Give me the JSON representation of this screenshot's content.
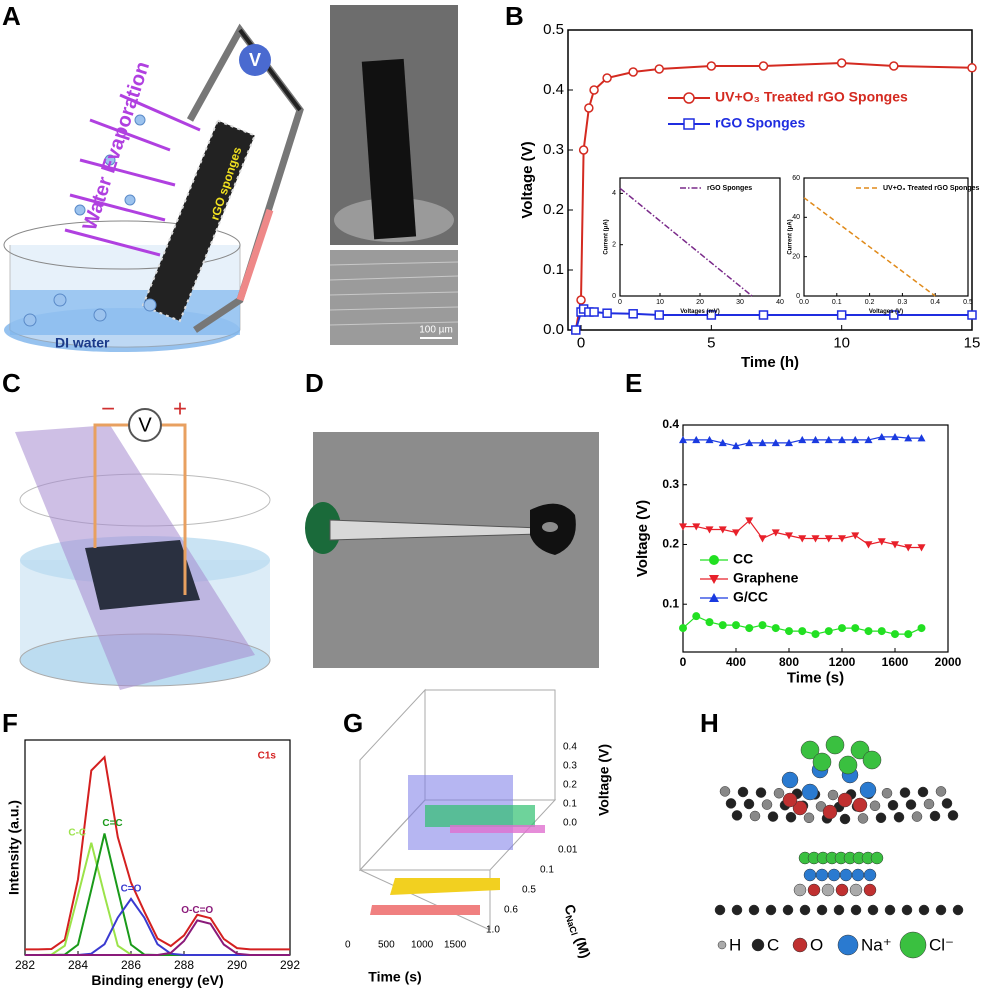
{
  "figure": {
    "panel_labels": [
      "A",
      "B",
      "C",
      "D",
      "E",
      "F",
      "G",
      "H"
    ],
    "panel_a": {
      "arrow_label": "Water Evaporation",
      "meter": "V",
      "sponge_label": "rGO sponges",
      "water_label": "DI water",
      "scale_bar": "100 µm"
    },
    "panel_c": {
      "meter": "V",
      "minus": "−",
      "plus": "+"
    },
    "panel_g": {
      "z_label": "Voltage (V)",
      "z_ticks": [
        "0.4",
        "0.3",
        "0.2",
        "0.1",
        "0.0"
      ],
      "y_label": "C",
      "y_label_sub": "NaCl",
      "y_label_unit": "(M)",
      "y_ticks": [
        "0.01",
        "0.1",
        "0.5",
        "0.6",
        "1.0"
      ],
      "x_label": "Time (s)",
      "x_ticks": [
        "0",
        "500",
        "1000",
        "1500"
      ]
    },
    "panel_h": {
      "legend": [
        "H",
        "C",
        "O",
        "Na⁺",
        "Cl⁻"
      ]
    }
  },
  "chart_data": [
    {
      "type": "line",
      "x_label": "Time (h)",
      "y_label": "Voltage (V)",
      "xlim": [
        -0.5,
        15
      ],
      "ylim": [
        0,
        0.5
      ],
      "xticks": [
        0,
        5,
        10,
        15
      ],
      "yticks": [
        {
          "value": 0,
          "label": "0.0"
        },
        0.1,
        0.2,
        0.3,
        0.4,
        0.5
      ],
      "x": [
        -0.2,
        0,
        0.1,
        0.3,
        0.5,
        1,
        2,
        3,
        5,
        7,
        10,
        12,
        15
      ],
      "series": [
        {
          "name": "UV+O₃ Treated rGO Sponges",
          "color": "#d42a20",
          "marker": "circle-open",
          "values": [
            0,
            0.05,
            0.3,
            0.37,
            0.4,
            0.42,
            0.43,
            0.435,
            0.44,
            0.44,
            0.445,
            0.44,
            0.437
          ]
        },
        {
          "name": "rGO Sponges",
          "color": "#1f2de0",
          "marker": "square-open",
          "values": [
            0,
            0.03,
            0.035,
            0.03,
            0.03,
            0.028,
            0.027,
            0.025,
            0.025,
            0.025,
            0.025,
            0.025,
            0.025
          ]
        }
      ]
    },
    {
      "type": "line",
      "x_label": "Voltages (mV)",
      "y_label": "Current (μA)",
      "xlim": [
        0,
        40
      ],
      "ylim": [
        0,
        4.6
      ],
      "xticks": [
        0,
        10,
        20,
        30,
        40
      ],
      "yticks": [
        0,
        2,
        4
      ],
      "x": [
        0,
        33
      ],
      "series": [
        {
          "name": "rGO Sponges",
          "color": "#7a2a8a",
          "linestyle": "dashdot",
          "values": [
            4.2,
            0
          ]
        }
      ]
    },
    {
      "type": "line",
      "x_label": "Voltages (V)",
      "y_label": "Current (μA)",
      "xlim": [
        0,
        0.5
      ],
      "ylim": [
        0,
        60
      ],
      "xticks": [
        {
          "value": 0,
          "label": "0.0"
        },
        0.1,
        0.2,
        0.3,
        0.4,
        0.5
      ],
      "yticks": [
        0,
        20,
        40,
        60
      ],
      "x": [
        0,
        0.4
      ],
      "series": [
        {
          "name": "UV+O₃ Treated rGO Sponges",
          "color": "#e08a1a",
          "linestyle": "dashed",
          "values": [
            50,
            0
          ]
        }
      ]
    },
    {
      "type": "line",
      "x_label": "Time (s)",
      "y_label": "Voltage (V)",
      "xlim": [
        0,
        2000
      ],
      "ylim": [
        0.02,
        0.4
      ],
      "xticks": [
        0,
        400,
        800,
        1200,
        1600,
        2000
      ],
      "yticks": [
        0.1,
        0.2,
        0.3,
        0.4
      ],
      "x": [
        0,
        100,
        200,
        300,
        400,
        500,
        600,
        700,
        800,
        900,
        1000,
        1100,
        1200,
        1300,
        1400,
        1500,
        1600,
        1700,
        1800
      ],
      "series": [
        {
          "name": "CC",
          "color": "#22e022",
          "marker": "circle-filled",
          "values": [
            0.06,
            0.08,
            0.07,
            0.065,
            0.065,
            0.06,
            0.065,
            0.06,
            0.055,
            0.055,
            0.05,
            0.055,
            0.06,
            0.06,
            0.055,
            0.055,
            0.05,
            0.05,
            0.06
          ]
        },
        {
          "name": "Graphene",
          "color": "#e8202a",
          "marker": "triangle-down",
          "values": [
            0.23,
            0.23,
            0.225,
            0.225,
            0.22,
            0.24,
            0.21,
            0.22,
            0.215,
            0.21,
            0.21,
            0.21,
            0.21,
            0.215,
            0.2,
            0.205,
            0.2,
            0.195,
            0.195
          ]
        },
        {
          "name": "G/CC",
          "color": "#1a3ae0",
          "marker": "triangle",
          "values": [
            0.375,
            0.375,
            0.375,
            0.37,
            0.365,
            0.37,
            0.37,
            0.37,
            0.37,
            0.375,
            0.375,
            0.375,
            0.375,
            0.375,
            0.375,
            0.38,
            0.38,
            0.378,
            0.378
          ]
        }
      ]
    },
    {
      "type": "line",
      "x_label": "Binding energy (eV)",
      "y_label": "Intensity (a.u.)",
      "annotation": "C1s",
      "xlim": [
        282,
        292
      ],
      "ylim": [
        0,
        1.15
      ],
      "xticks": [
        282,
        284,
        286,
        288,
        290,
        292
      ],
      "x": [
        282,
        282.5,
        283,
        283.5,
        284,
        284.5,
        285,
        285.5,
        286,
        286.5,
        287,
        287.5,
        288,
        288.5,
        289,
        289.5,
        290,
        290.5,
        291,
        291.5,
        292
      ],
      "series": [
        {
          "color": "#d42020",
          "values": [
            0.03,
            0.03,
            0.032,
            0.082,
            0.405,
            0.987,
            1.058,
            0.63,
            0.387,
            0.232,
            0.088,
            0.048,
            0.105,
            0.215,
            0.197,
            0.086,
            0.037,
            0.03,
            0.03,
            0.03,
            0.03
          ]
        },
        {
          "name": "C-C",
          "color": "#9be34a",
          "values": [
            0,
            0,
            0.002,
            0.05,
            0.32,
            0.6,
            0.32,
            0.05,
            0.002,
            0,
            0,
            0,
            0,
            0,
            0,
            0,
            0,
            0,
            0,
            0,
            0
          ]
        },
        {
          "name": "C=C",
          "color": "#1a9a1a",
          "values": [
            0,
            0,
            0,
            0.002,
            0.055,
            0.35,
            0.65,
            0.35,
            0.055,
            0.002,
            0,
            0,
            0,
            0,
            0,
            0,
            0,
            0,
            0,
            0,
            0
          ]
        },
        {
          "name": "C=O",
          "color": "#3a3ad0",
          "values": [
            0,
            0,
            0,
            0,
            0,
            0.007,
            0.058,
            0.2,
            0.3,
            0.2,
            0.058,
            0.007,
            0,
            0,
            0,
            0,
            0,
            0,
            0,
            0,
            0
          ]
        },
        {
          "name": "O-C=O",
          "color": "#8a1a7a",
          "values": [
            0,
            0,
            0,
            0,
            0,
            0,
            0,
            0,
            0,
            0,
            0,
            0.011,
            0.075,
            0.185,
            0.167,
            0.056,
            0.007,
            0,
            0,
            0,
            0
          ]
        }
      ]
    }
  ]
}
